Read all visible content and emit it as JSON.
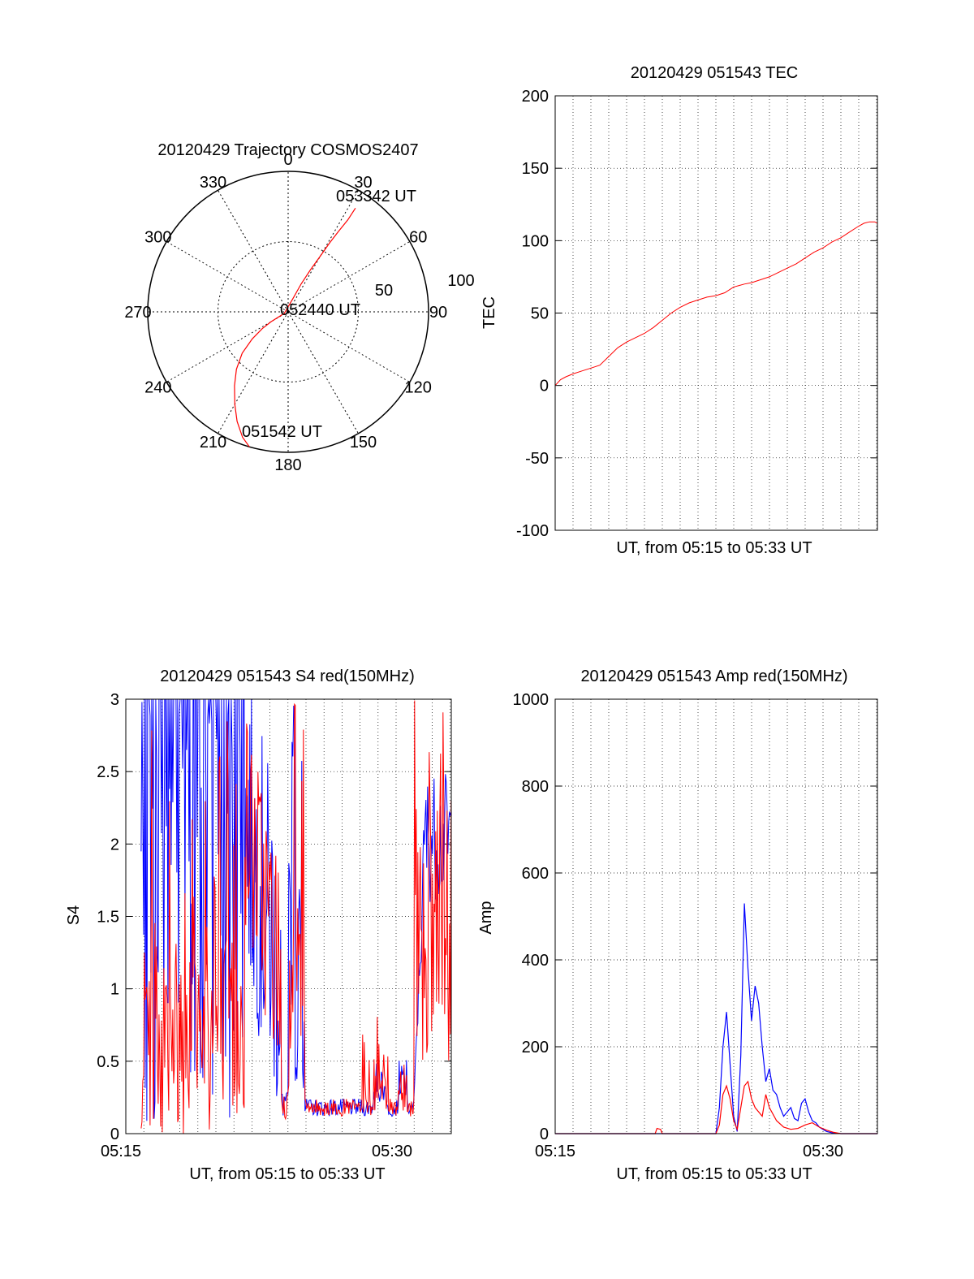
{
  "chart_data": [
    {
      "type": "polar",
      "title": "20120429 Trajectory COSMOS2407",
      "angle_labels": [
        "0",
        "30",
        "60",
        "90",
        "120",
        "150",
        "180",
        "210",
        "240",
        "270",
        "300",
        "330"
      ],
      "radius_labels": [
        "50",
        "100"
      ],
      "radius_max": 100,
      "rings": [
        50,
        100
      ],
      "series": [
        {
          "color": "#ff0000",
          "points": [
            [
              196,
              100
            ],
            [
              200,
              95
            ],
            [
              205,
              86
            ],
            [
              210,
              76
            ],
            [
              216,
              65
            ],
            [
              222,
              55
            ],
            [
              228,
              44
            ],
            [
              233,
              32
            ],
            [
              237,
              22
            ],
            [
              240,
              14
            ],
            [
              248,
              3
            ],
            [
              20,
              10
            ],
            [
              25,
              22
            ],
            [
              28,
              34
            ],
            [
              30,
              46
            ],
            [
              31,
              57
            ],
            [
              32,
              67
            ],
            [
              33,
              78
            ],
            [
              33,
              88
            ]
          ]
        }
      ],
      "annotations": [
        {
          "text": "051542 UT"
        },
        {
          "text": "052440 UT"
        },
        {
          "text": "053342 UT"
        }
      ]
    },
    {
      "type": "line",
      "title": "20120429 051543 TEC",
      "xlabel": "UT, from 05:15 to 05:33 UT",
      "ylabel": "TEC",
      "xlim": [
        0,
        18.05
      ],
      "ylim": [
        -100,
        200
      ],
      "yticks": [
        "-100",
        "-50",
        "0",
        "50",
        "100",
        "150",
        "200"
      ],
      "grid": true,
      "series": [
        {
          "color": "#ff0000",
          "x": [
            0,
            0.3,
            0.6,
            1.0,
            1.5,
            2.0,
            2.5,
            3.0,
            3.5,
            4.0,
            4.5,
            5.0,
            5.5,
            6.0,
            6.5,
            7.0,
            7.5,
            8.0,
            8.5,
            9.0,
            9.5,
            10.0,
            10.3,
            10.6,
            11,
            11.5,
            12,
            12.5,
            13,
            13.5,
            14,
            14.5,
            15,
            15.5,
            16,
            16.5,
            17,
            17.3,
            17.6,
            17.9,
            18.05
          ],
          "y": [
            0,
            4,
            6,
            8,
            10,
            12,
            14,
            20,
            26,
            30,
            33,
            36,
            40,
            45,
            50,
            54,
            57,
            59,
            61,
            62,
            64,
            68,
            69,
            70,
            71,
            73,
            75,
            78,
            81,
            84,
            88,
            92,
            95,
            99,
            102,
            106,
            110,
            112,
            113,
            113,
            112
          ]
        }
      ]
    },
    {
      "type": "line",
      "title": "20120429 051543 S4 red(150MHz)",
      "xlabel": "UT, from 05:15 to 05:33 UT",
      "ylabel": "S4",
      "xlim": [
        0,
        18.05
      ],
      "ylim": [
        0,
        3
      ],
      "xticks": [
        {
          "x": 0,
          "label": "05:15"
        },
        {
          "x": 15,
          "label": "05:30"
        }
      ],
      "yticks": [
        "0",
        "0.5",
        "1",
        "1.5",
        "2",
        "2.5",
        "3"
      ],
      "grid": true,
      "series": [
        {
          "color": "#0000ff"
        },
        {
          "color": "#ff0000"
        }
      ]
    },
    {
      "type": "line",
      "title": "20120429 051543 Amp red(150MHz)",
      "xlabel": "UT, from 05:15 to 05:33 UT",
      "ylabel": "Amp",
      "xlim": [
        0,
        18.05
      ],
      "ylim": [
        0,
        1000
      ],
      "xticks": [
        {
          "x": 0,
          "label": "05:15"
        },
        {
          "x": 15,
          "label": "05:30"
        }
      ],
      "yticks": [
        "0",
        "200",
        "400",
        "600",
        "800",
        "1000"
      ],
      "grid": true,
      "series": [
        {
          "color": "#0000ff",
          "x": [
            0,
            9.0,
            9.2,
            9.4,
            9.6,
            9.8,
            10.0,
            10.2,
            10.4,
            10.6,
            10.8,
            11.0,
            11.2,
            11.4,
            11.6,
            11.8,
            12.0,
            12.2,
            12.4,
            12.6,
            12.8,
            13.0,
            13.2,
            13.4,
            13.6,
            13.8,
            14.0,
            14.2,
            14.4,
            14.6,
            14.8,
            15.0,
            15.2,
            15.5,
            16,
            17,
            18.05
          ],
          "y": [
            0,
            0,
            60,
            200,
            280,
            160,
            40,
            5,
            180,
            530,
            380,
            260,
            340,
            300,
            200,
            120,
            150,
            100,
            90,
            60,
            40,
            50,
            60,
            35,
            30,
            70,
            80,
            50,
            30,
            25,
            15,
            10,
            5,
            2,
            0,
            0,
            0
          ]
        },
        {
          "color": "#ff0000",
          "x": [
            0,
            5.6,
            5.7,
            5.9,
            6.0,
            9.0,
            9.2,
            9.4,
            9.6,
            9.8,
            10.0,
            10.2,
            10.4,
            10.6,
            10.8,
            11.0,
            11.2,
            11.4,
            11.6,
            11.8,
            12.0,
            12.4,
            12.8,
            13.2,
            13.6,
            14.0,
            14.4,
            14.8,
            15.2,
            15.6,
            16,
            17,
            18.05
          ],
          "y": [
            0,
            0,
            12,
            10,
            0,
            0,
            20,
            90,
            110,
            80,
            30,
            10,
            60,
            110,
            120,
            80,
            60,
            50,
            40,
            90,
            60,
            30,
            15,
            10,
            12,
            20,
            25,
            15,
            8,
            3,
            0,
            0,
            0
          ]
        }
      ]
    }
  ]
}
